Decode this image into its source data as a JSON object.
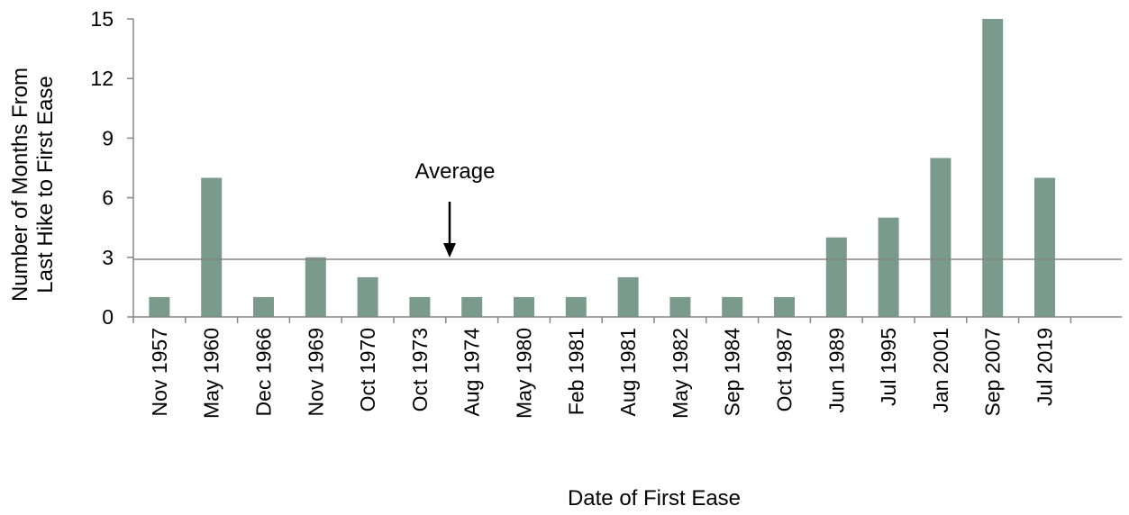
{
  "chart_data": {
    "type": "bar",
    "categories": [
      "Nov 1957",
      "May 1960",
      "Dec 1966",
      "Nov 1969",
      "Oct 1970",
      "Oct 1973",
      "Aug 1974",
      "May 1980",
      "Feb 1981",
      "Aug 1981",
      "May 1982",
      "Sep 1984",
      "Oct 1987",
      "Jun 1989",
      "Jul 1995",
      "Jan 2001",
      "Sep 2007",
      "Jul 2019"
    ],
    "values": [
      1,
      7,
      1,
      3,
      2,
      1,
      1,
      1,
      1,
      2,
      1,
      1,
      1,
      4,
      5,
      8,
      15,
      7
    ],
    "title": "",
    "xlabel": "Date of First Ease",
    "ylabel": "Number of Months From Last Hike to First Ease",
    "ylim": [
      0,
      15
    ],
    "yticks": [
      0,
      3,
      6,
      9,
      12,
      15
    ],
    "reference_line": {
      "label": "Average",
      "value": 2.9
    },
    "grid": false,
    "legend": "none",
    "colors": {
      "bar": "#7a9a8e",
      "axis": "#868686",
      "reference_line": "#868686",
      "arrow": "#000000"
    }
  }
}
